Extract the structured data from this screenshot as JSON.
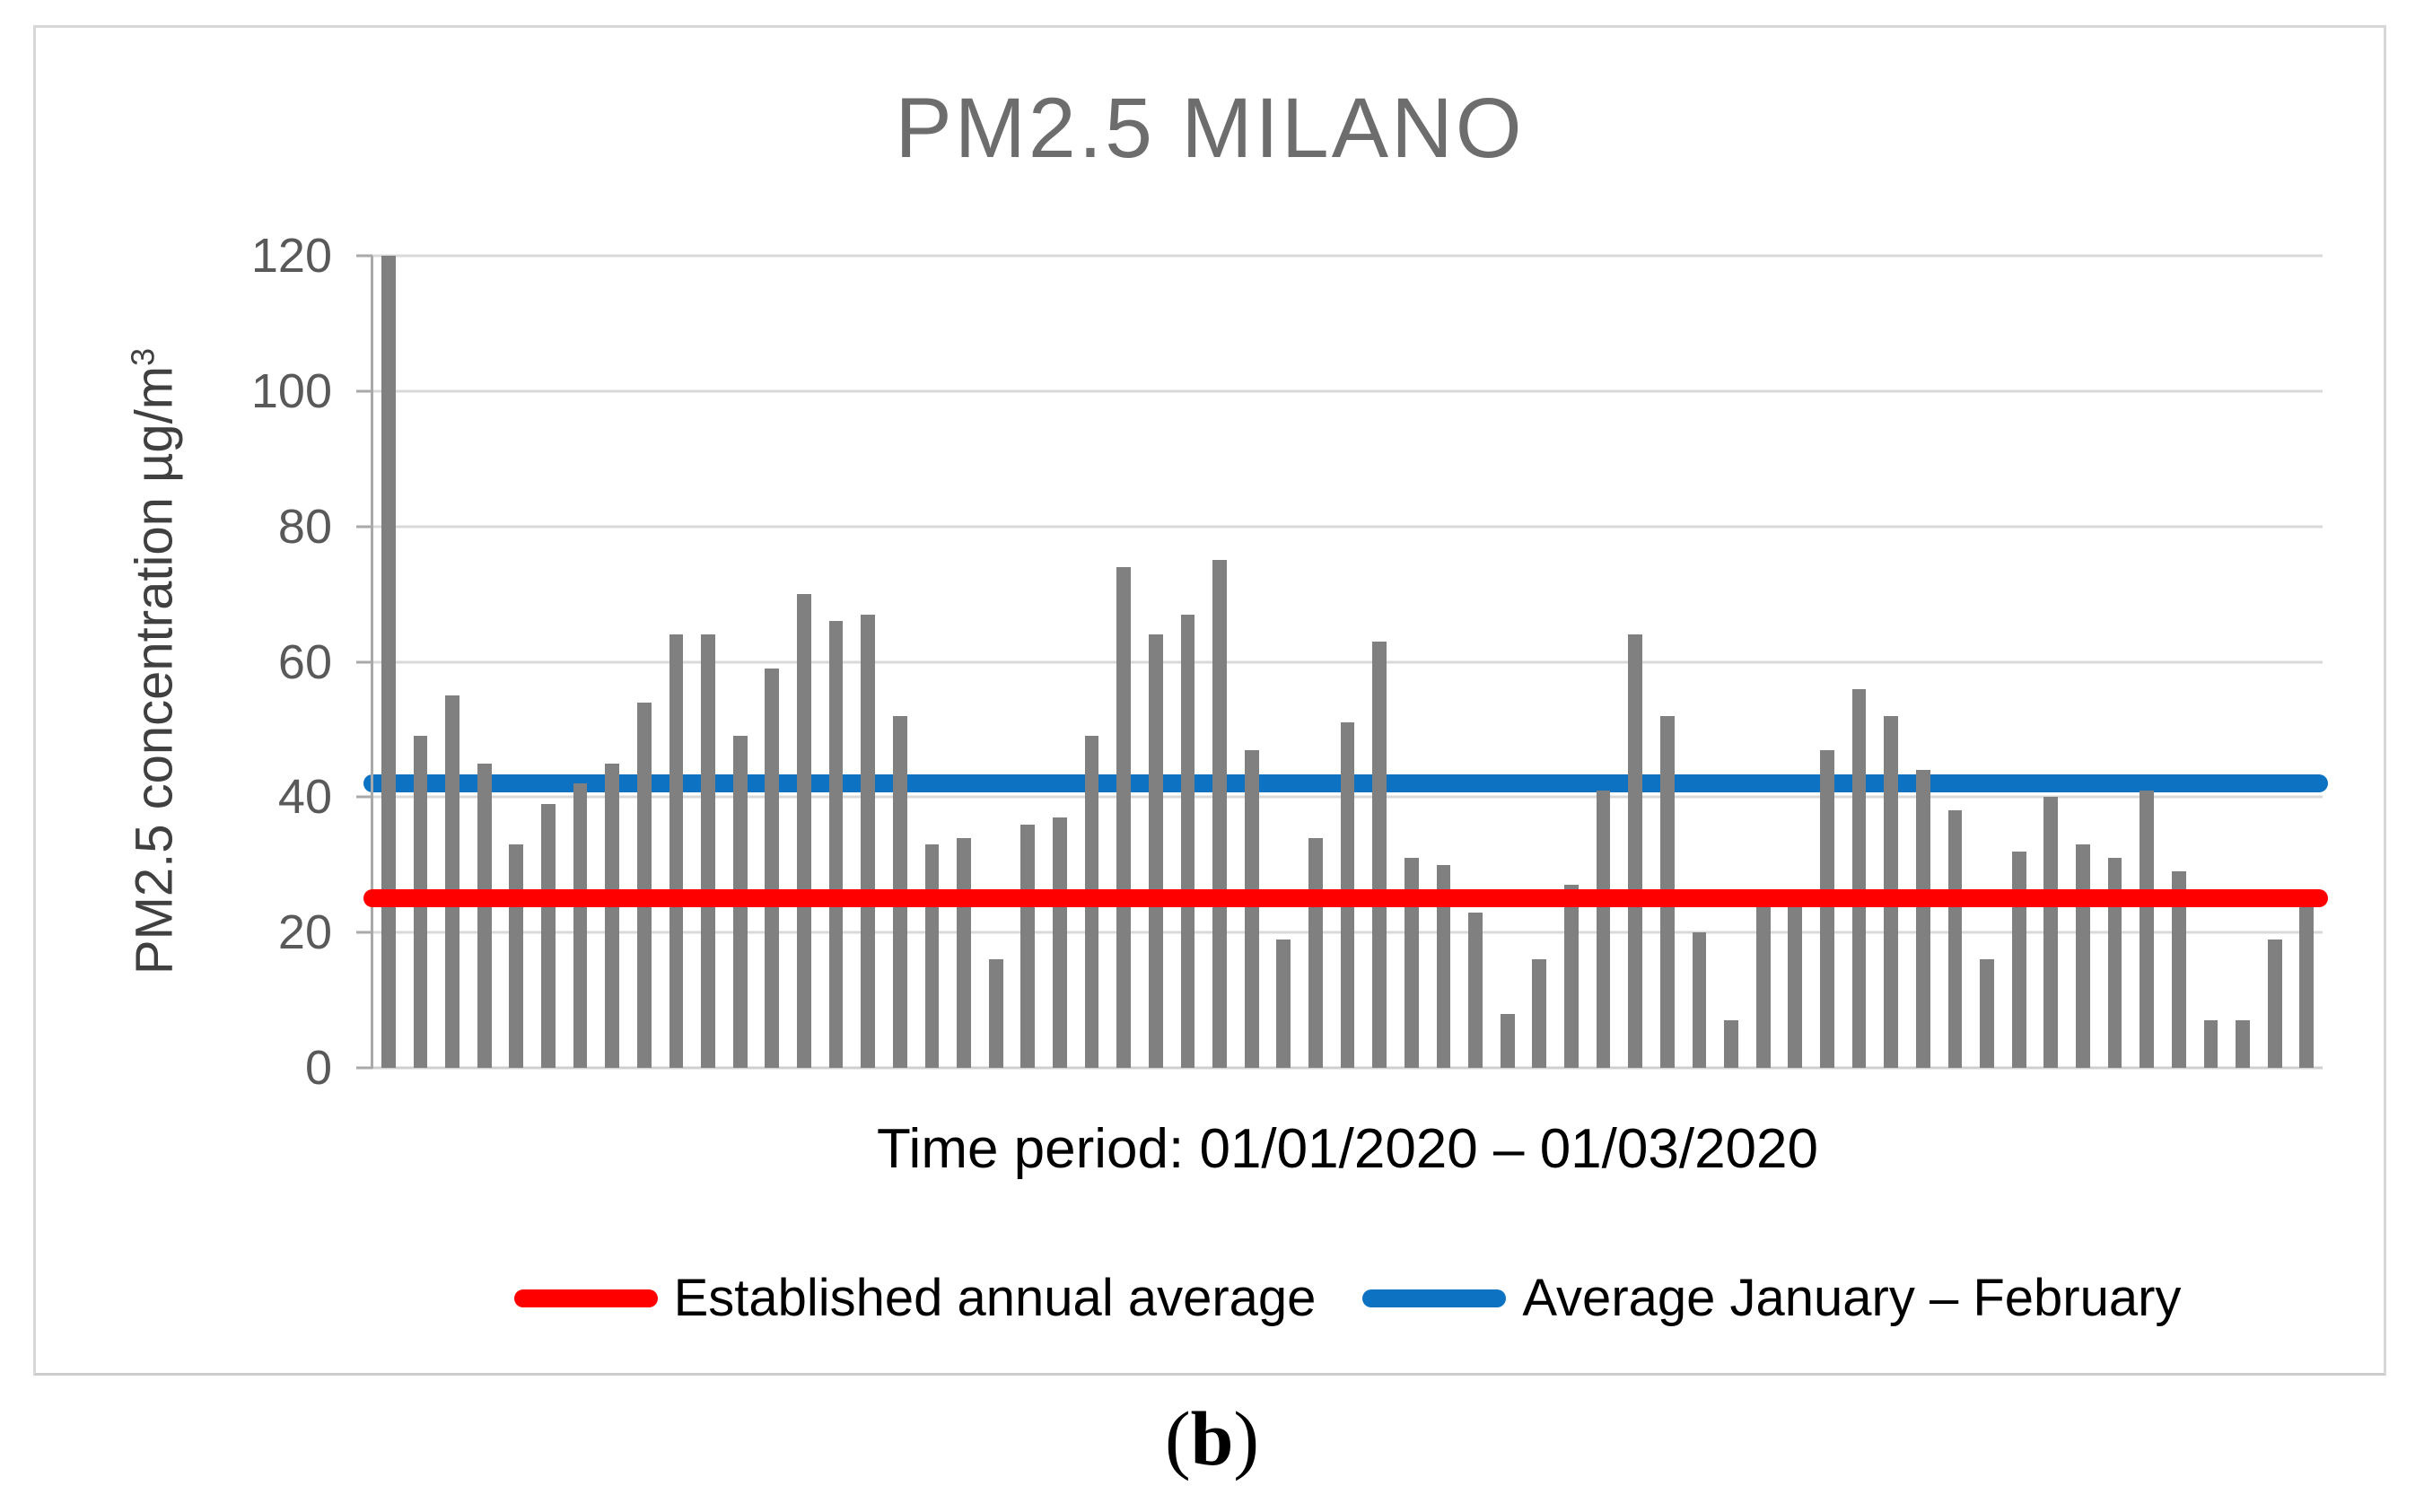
{
  "figure": {
    "caption_open": "(",
    "caption_letter": "b",
    "caption_close": ")"
  },
  "chart_data": {
    "type": "bar",
    "title": "PM2.5 MILANO",
    "ylabel": "PM2.5 concentration µg/m³",
    "ylabel_main": "PM2.5 concentration µg/m",
    "ylabel_sup": "3",
    "xlabel": "Time period: 01/01/2020 – 01/03/2020",
    "ylim": [
      0,
      120
    ],
    "yticks": [
      0,
      20,
      40,
      60,
      80,
      100,
      120
    ],
    "grid": "horizontal",
    "legend_position": "bottom",
    "bar_color": "#808080",
    "values": [
      120,
      49,
      55,
      45,
      33,
      39,
      42,
      45,
      54,
      64,
      64,
      49,
      59,
      70,
      66,
      67,
      52,
      33,
      34,
      16,
      36,
      37,
      49,
      74,
      64,
      67,
      75,
      47,
      19,
      34,
      51,
      63,
      31,
      30,
      23,
      8,
      16,
      27,
      41,
      64,
      52,
      20,
      7,
      24,
      24,
      47,
      56,
      52,
      44,
      38,
      16,
      32,
      40,
      33,
      31,
      41,
      29,
      7,
      7,
      19,
      24
    ],
    "reference_lines": [
      {
        "label": "Established annual average",
        "value": 25,
        "color": "#ff0000"
      },
      {
        "label": "Average January – February",
        "value": 42,
        "color": "#0e72c3"
      }
    ]
  }
}
